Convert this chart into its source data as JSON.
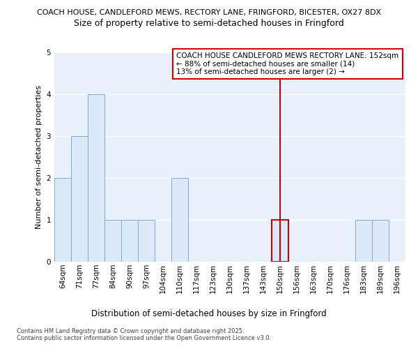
{
  "title_main": "COACH HOUSE, CANDLEFORD MEWS, RECTORY LANE, FRINGFORD, BICESTER, OX27 8DX",
  "title_sub": "Size of property relative to semi-detached houses in Fringford",
  "xlabel": "Distribution of semi-detached houses by size in Fringford",
  "ylabel": "Number of semi-detached properties",
  "bins": [
    "64sqm",
    "71sqm",
    "77sqm",
    "84sqm",
    "90sqm",
    "97sqm",
    "104sqm",
    "110sqm",
    "117sqm",
    "123sqm",
    "130sqm",
    "137sqm",
    "143sqm",
    "150sqm",
    "156sqm",
    "163sqm",
    "170sqm",
    "176sqm",
    "183sqm",
    "189sqm",
    "196sqm"
  ],
  "values": [
    2,
    3,
    4,
    1,
    1,
    1,
    0,
    2,
    0,
    0,
    0,
    0,
    0,
    1,
    0,
    0,
    0,
    0,
    1,
    1,
    0
  ],
  "highlight_index": 13,
  "bar_color": "#dce9f8",
  "bar_edge_color": "#7aadd4",
  "highlight_bar_edge_color": "#cc0000",
  "vline_color": "#cc0000",
  "annotation_text": "COACH HOUSE CANDLEFORD MEWS RECTORY LANE: 152sqm\n← 88% of semi-detached houses are smaller (14)\n13% of semi-detached houses are larger (2) →",
  "annotation_box_color": "#ffffff",
  "annotation_box_edge_color": "#cc0000",
  "ylim": [
    0,
    5
  ],
  "yticks": [
    0,
    1,
    2,
    3,
    4,
    5
  ],
  "footer_text": "Contains HM Land Registry data © Crown copyright and database right 2025.\nContains public sector information licensed under the Open Government Licence v3.0.",
  "figure_bg": "#ffffff",
  "plot_bg": "#e8f0fb",
  "grid_color": "#ffffff",
  "title_main_fontsize": 8.0,
  "title_sub_fontsize": 9.0,
  "xlabel_fontsize": 8.5,
  "ylabel_fontsize": 8.0,
  "tick_fontsize": 7.5,
  "annot_fontsize": 7.5,
  "footer_fontsize": 6.0
}
